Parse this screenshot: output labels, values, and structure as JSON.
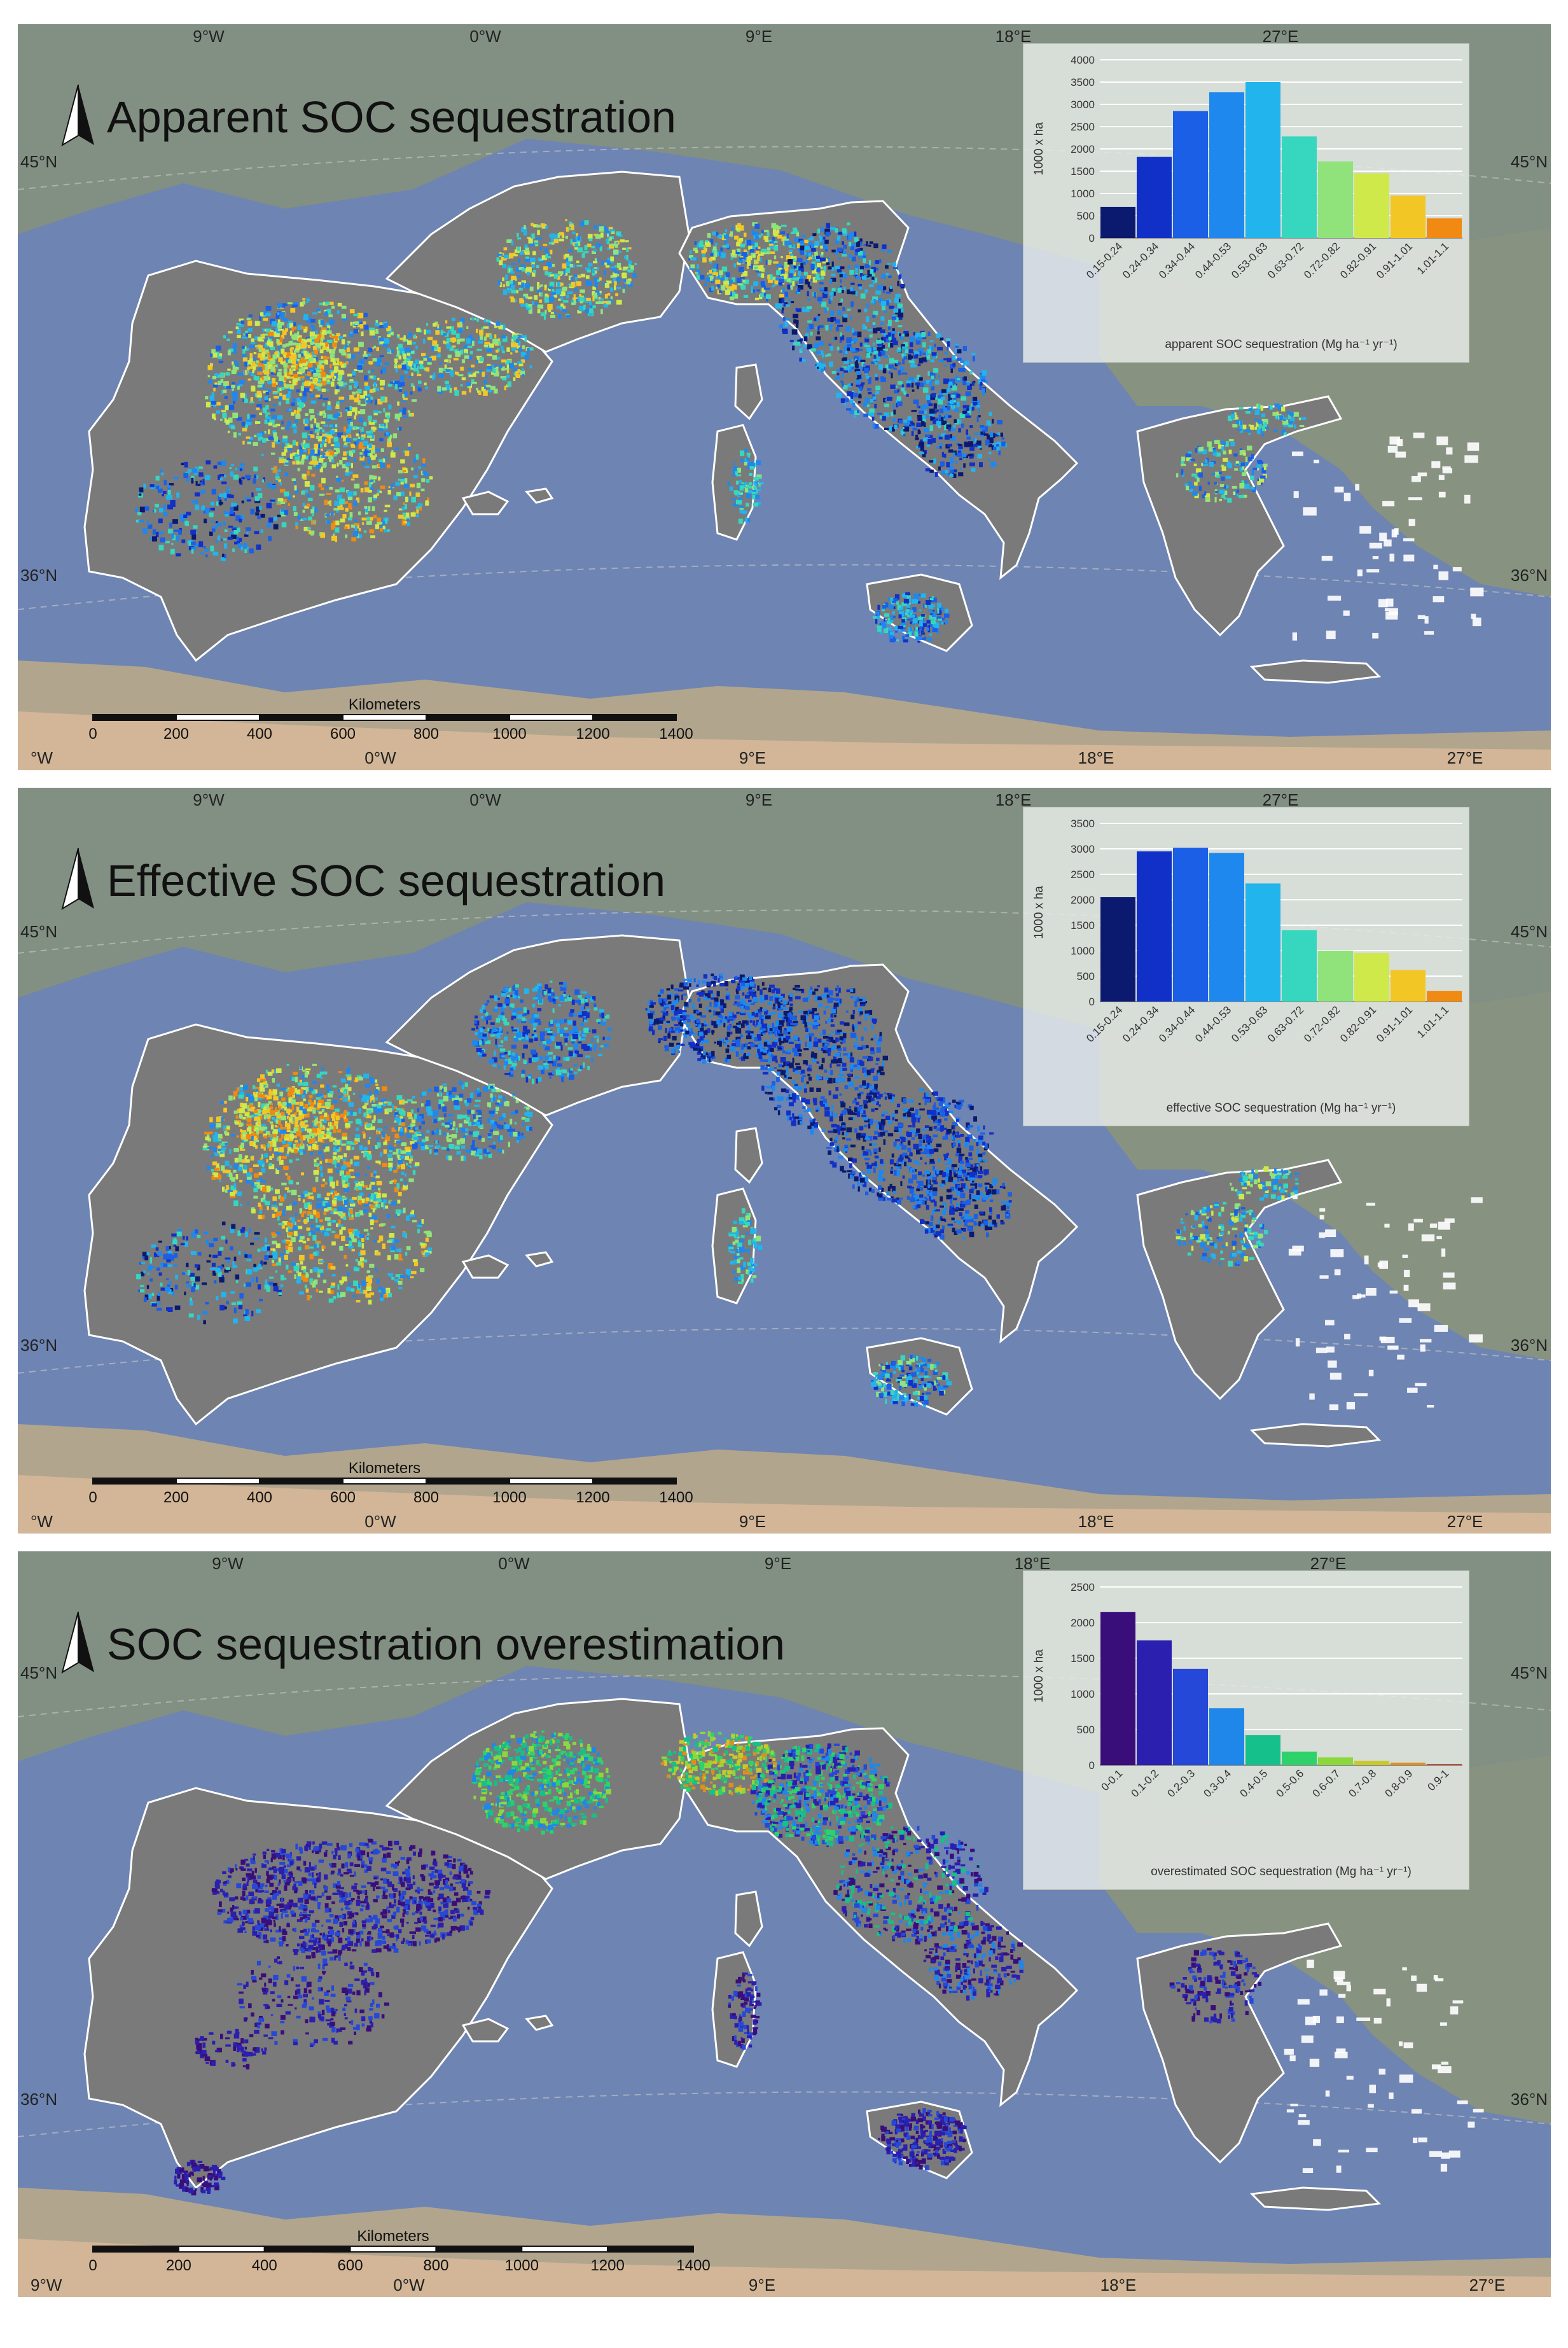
{
  "map": {
    "scalebar": {
      "title": "Kilometers",
      "ticks": [
        "0",
        "200",
        "400",
        "600",
        "800",
        "1000",
        "1200",
        "1400"
      ]
    },
    "palette_main": [
      "#0b1a6e",
      "#1130c8",
      "#1a5fe6",
      "#1f88ee",
      "#22b4ec",
      "#36d7be",
      "#8fe37a",
      "#cfe84a",
      "#f2c625",
      "#f08a12",
      "#d63a10"
    ],
    "palette_over": [
      "#3a0e7a",
      "#2b1fb0",
      "#2548d8",
      "#1f86ea",
      "#16c08a",
      "#2ed26a",
      "#8ad83c",
      "#c9c92a",
      "#e08e1c",
      "#c23410"
    ],
    "land_color": "#7a7a7a",
    "sea_color": "#6e84b2"
  },
  "panels": [
    {
      "title": "Apparent SOC sequestration",
      "top_coords": [
        "9°W",
        "0°W",
        "9°E",
        "18°E",
        "27°E"
      ],
      "bottom_coords": [
        "°W",
        "0°W",
        "9°E",
        "18°E",
        "27°E"
      ],
      "lat_left": [
        "45°N",
        "36°N"
      ],
      "lat_right": [
        "45°N",
        "36°N"
      ],
      "chart_data": {
        "type": "bar",
        "categories": [
          "0.15-0.24",
          "0.24-0.34",
          "0.34-0.44",
          "0.44-0.53",
          "0.53-0.63",
          "0.63-0.72",
          "0.72-0.82",
          "0.82-0.91",
          "0.91-1.01",
          "1.01-1.1"
        ],
        "values": [
          700,
          1820,
          2850,
          3270,
          3500,
          2280,
          1720,
          1450,
          950,
          440
        ],
        "colors": [
          "#0b1a6e",
          "#1130c8",
          "#1a5fe6",
          "#1f88ee",
          "#22b4ec",
          "#36d7be",
          "#8fe37a",
          "#cfe84a",
          "#f2c625",
          "#f08a12"
        ],
        "ylabel": "1000 x ha",
        "xlabel": "apparent SOC sequestration (Mg ha⁻¹ yr⁻¹)",
        "ylim": [
          0,
          4000
        ],
        "yticks": [
          0,
          500,
          1000,
          1500,
          2000,
          2500,
          3000,
          3500,
          4000
        ],
        "grid": true
      }
    },
    {
      "title": "Effective SOC sequestration",
      "top_coords": [
        "9°W",
        "0°W",
        "9°E",
        "18°E",
        "27°E"
      ],
      "bottom_coords": [
        "°W",
        "0°W",
        "9°E",
        "18°E",
        "27°E"
      ],
      "lat_left": [
        "45°N",
        "36°N"
      ],
      "lat_right": [
        "45°N",
        "36°N"
      ],
      "chart_data": {
        "type": "bar",
        "categories": [
          "0.15-0.24",
          "0.24-0.34",
          "0.34-0.44",
          "0.44-0.53",
          "0.53-0.63",
          "0.63-0.72",
          "0.72-0.82",
          "0.82-0.91",
          "0.91-1.01",
          "1.01-1.1"
        ],
        "values": [
          2050,
          2950,
          3020,
          2920,
          2320,
          1400,
          1000,
          950,
          620,
          210
        ],
        "colors": [
          "#0b1a6e",
          "#1130c8",
          "#1a5fe6",
          "#1f88ee",
          "#22b4ec",
          "#36d7be",
          "#8fe37a",
          "#cfe84a",
          "#f2c625",
          "#f08a12"
        ],
        "ylabel": "1000 x ha",
        "xlabel": "effective SOC sequestration (Mg ha⁻¹ yr⁻¹)",
        "ylim": [
          0,
          3500
        ],
        "yticks": [
          0,
          500,
          1000,
          1500,
          2000,
          2500,
          3000,
          3500
        ],
        "grid": true
      }
    },
    {
      "title": "SOC sequestration overestimation",
      "top_coords": [
        "9°W",
        "0°W",
        "9°E",
        "18°E",
        "27°E"
      ],
      "bottom_coords": [
        "9°W",
        "0°W",
        "9°E",
        "18°E",
        "27°E"
      ],
      "lat_left": [
        "45°N",
        "36°N"
      ],
      "lat_right": [
        "45°N",
        "36°N"
      ],
      "chart_data": {
        "type": "bar",
        "categories": [
          "0-0.1",
          "0.1-0.2",
          "0.2-0.3",
          "0.3-0.4",
          "0.4-0.5",
          "0.5-0.6",
          "0.6-0.7",
          "0.7-0.8",
          "0.8-0.9",
          "0.9-1"
        ],
        "values": [
          2150,
          1750,
          1350,
          800,
          420,
          190,
          110,
          60,
          35,
          15
        ],
        "colors": [
          "#3a0e7a",
          "#2b1fb0",
          "#2548d8",
          "#1f86ea",
          "#16c08a",
          "#2ed26a",
          "#8ad83c",
          "#c9c92a",
          "#e08e1c",
          "#c23410"
        ],
        "ylabel": "1000 x ha",
        "xlabel": "overestimated SOC sequestration (Mg ha⁻¹ yr⁻¹)",
        "ylim": [
          0,
          2500
        ],
        "yticks": [
          0,
          500,
          1000,
          1500,
          2000,
          2500
        ],
        "grid": true
      }
    }
  ]
}
